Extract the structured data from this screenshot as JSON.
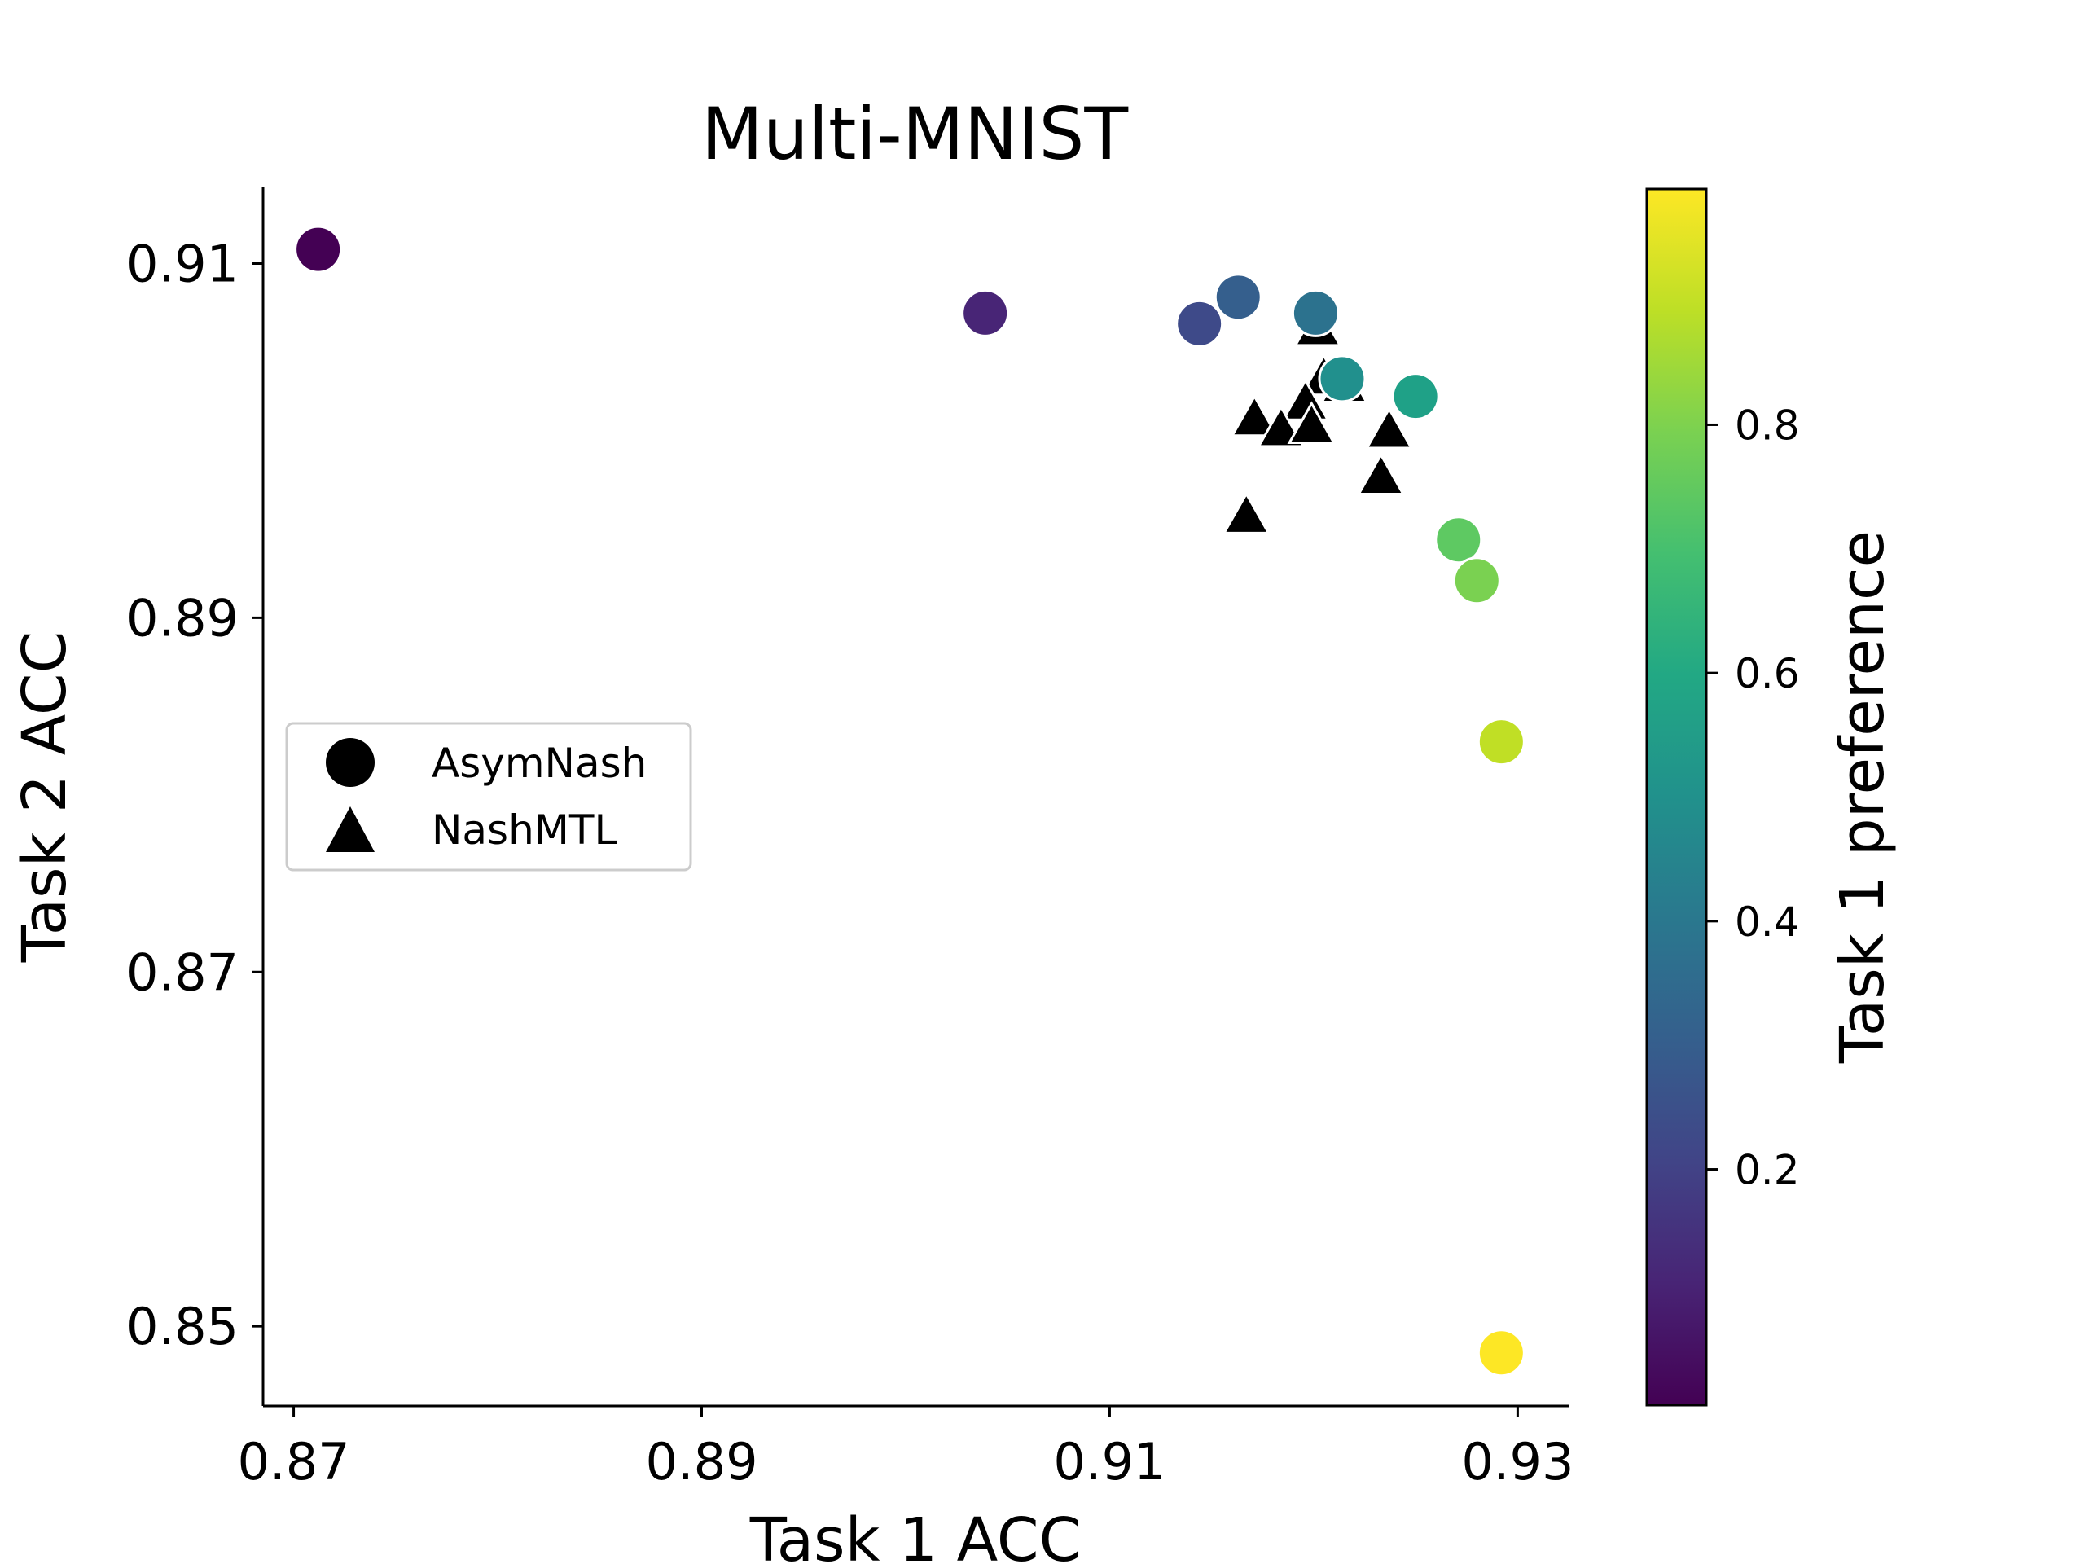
{
  "chart_data": {
    "type": "scatter",
    "title": "Multi-MNIST",
    "xlabel": "Task 1 ACC",
    "ylabel": "Task 2 ACC",
    "xlim": [
      0.8685,
      0.9325
    ],
    "ylim": [
      0.8455,
      0.9143
    ],
    "xticks": [
      0.87,
      0.89,
      0.91,
      0.93
    ],
    "xtick_labels": [
      "0.87",
      "0.89",
      "0.91",
      "0.93"
    ],
    "yticks": [
      0.85,
      0.87,
      0.89,
      0.91
    ],
    "ytick_labels": [
      "0.85",
      "0.87",
      "0.89",
      "0.91"
    ],
    "colorbar": {
      "label": "Task 1 preference",
      "colormap": "viridis",
      "range": [
        0.01,
        0.99
      ],
      "ticks": [
        0.2,
        0.4,
        0.6,
        0.8
      ],
      "tick_labels": [
        "0.2",
        "0.4",
        "0.6",
        "0.8"
      ]
    },
    "legend": {
      "position": "center-left",
      "entries": [
        {
          "label": "AsymNash",
          "marker": "circle"
        },
        {
          "label": "NashMTL",
          "marker": "triangle"
        }
      ]
    },
    "series": [
      {
        "name": "NashMTL",
        "marker": "triangle",
        "color": "#000000",
        "points": [
          {
            "x": 0.9202,
            "y": 0.9064
          },
          {
            "x": 0.9205,
            "y": 0.9036
          },
          {
            "x": 0.9215,
            "y": 0.9032
          },
          {
            "x": 0.9196,
            "y": 0.9022
          },
          {
            "x": 0.9171,
            "y": 0.9013
          },
          {
            "x": 0.9184,
            "y": 0.9007
          },
          {
            "x": 0.9199,
            "y": 0.9009
          },
          {
            "x": 0.9237,
            "y": 0.9006
          },
          {
            "x": 0.9233,
            "y": 0.898
          },
          {
            "x": 0.9167,
            "y": 0.8958
          }
        ]
      },
      {
        "name": "AsymNash",
        "marker": "circle",
        "points": [
          {
            "x": 0.8712,
            "y": 0.9108,
            "preference": 0.01,
            "color": "#440154"
          },
          {
            "x": 0.9039,
            "y": 0.9072,
            "preference": 0.08,
            "color": "#482576"
          },
          {
            "x": 0.9144,
            "y": 0.9066,
            "preference": 0.17,
            "color": "#3e4a89"
          },
          {
            "x": 0.9163,
            "y": 0.9081,
            "preference": 0.22,
            "color": "#355f8d"
          },
          {
            "x": 0.9201,
            "y": 0.9072,
            "preference": 0.38,
            "color": "#2c728e"
          },
          {
            "x": 0.9214,
            "y": 0.9035,
            "preference": 0.47,
            "color": "#21908d"
          },
          {
            "x": 0.925,
            "y": 0.9025,
            "preference": 0.6,
            "color": "#1fa187"
          },
          {
            "x": 0.9271,
            "y": 0.8944,
            "preference": 0.76,
            "color": "#5ec962"
          },
          {
            "x": 0.928,
            "y": 0.8921,
            "preference": 0.8,
            "color": "#7ad151"
          },
          {
            "x": 0.9292,
            "y": 0.883,
            "preference": 0.94,
            "color": "#c0df25"
          },
          {
            "x": 0.9292,
            "y": 0.8485,
            "preference": 0.99,
            "color": "#fde725"
          }
        ]
      }
    ]
  }
}
